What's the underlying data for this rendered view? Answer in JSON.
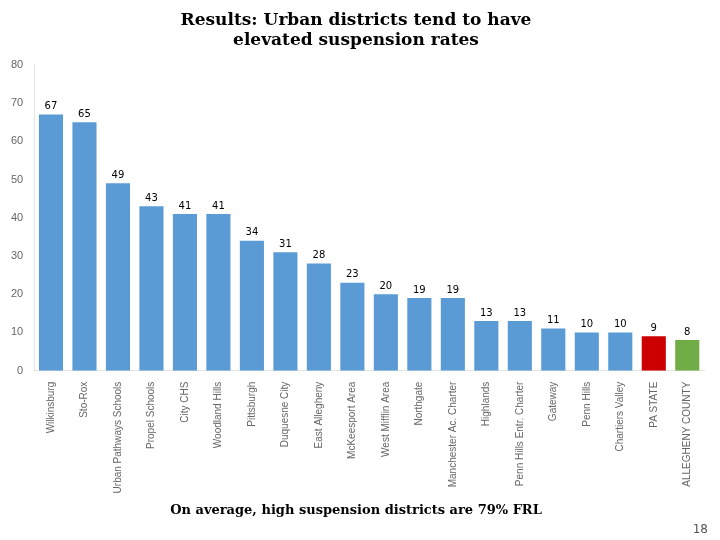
{
  "chart_data": {
    "type": "bar",
    "title": [
      "Results: Urban districts tend to have",
      "elevated suspension rates"
    ],
    "subtitle": "On average, high suspension districts are 79% FRL",
    "annotations": [
      "18"
    ],
    "categories": [
      "Wilkinsburg",
      "Sto-Rox",
      "Urban Pathways Schools",
      "Propel Schools",
      "City CHS",
      "Woodland Hills",
      "Pittsburgh",
      "Duquesne City",
      "East Allegheny",
      "McKeesport Area",
      "West Mifflin Area",
      "Northgate",
      "Manchester Ac. Charter",
      "Highlands",
      "Penn Hills Entr. Charter",
      "Gateway",
      "Penn Hills",
      "Chartiers Valley",
      "PA STATE",
      "ALLEGHENY COUNTY"
    ],
    "values": [
      67,
      65,
      49,
      43,
      41,
      41,
      34,
      31,
      28,
      23,
      20,
      19,
      19,
      13,
      13,
      11,
      10,
      10,
      9,
      8
    ],
    "colors": [
      "#5B9BD5",
      "#5B9BD5",
      "#5B9BD5",
      "#5B9BD5",
      "#5B9BD5",
      "#5B9BD5",
      "#5B9BD5",
      "#5B9BD5",
      "#5B9BD5",
      "#5B9BD5",
      "#5B9BD5",
      "#5B9BD5",
      "#5B9BD5",
      "#5B9BD5",
      "#5B9BD5",
      "#5B9BD5",
      "#5B9BD5",
      "#5B9BD5",
      "#CC0000",
      "#70AD47"
    ],
    "ylim": [
      0,
      80
    ],
    "yticks": [
      0,
      10,
      20,
      30,
      40,
      50,
      60,
      70,
      80
    ],
    "data_labels": true,
    "grid": false
  }
}
